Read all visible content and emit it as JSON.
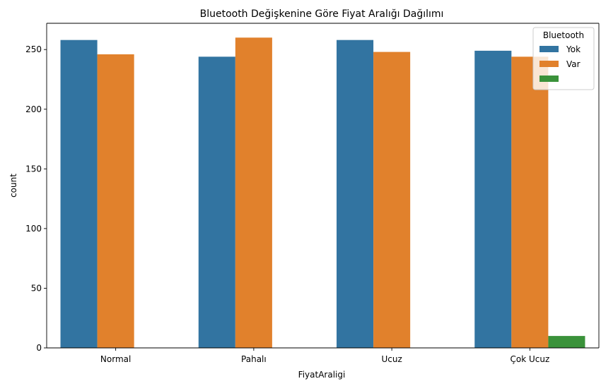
{
  "chart_data": {
    "type": "bar",
    "title": "Bluetooth Değişkenine Göre Fiyat Aralığı Dağılımı",
    "xlabel": "FiyatAraligi",
    "ylabel": "count",
    "categories": [
      "Normal",
      "Pahalı",
      "Ucuz",
      "Çok Ucuz"
    ],
    "series": [
      {
        "name": "Yok",
        "values": [
          258,
          244,
          258,
          249
        ],
        "color": "#3274a1"
      },
      {
        "name": "Var",
        "values": [
          246,
          260,
          248,
          244
        ],
        "color": "#e1812c"
      },
      {
        "name": "",
        "values": [
          null,
          null,
          null,
          10
        ],
        "color": "#3a923a"
      }
    ],
    "ylim": [
      0,
      272
    ],
    "yticks": [
      0,
      50,
      100,
      150,
      200,
      250
    ],
    "grid": false,
    "legend": {
      "title": "Bluetooth",
      "placement": "top-right"
    }
  }
}
